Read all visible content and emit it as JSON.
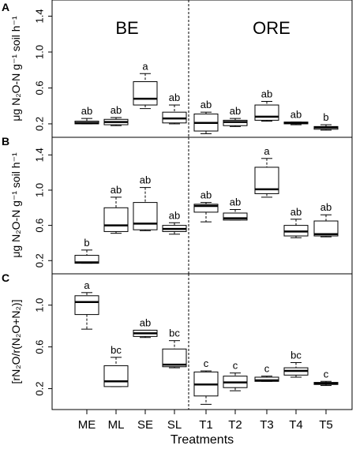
{
  "xlabel": "Treatments",
  "group_labels": [
    "BE",
    "ORE"
  ],
  "categories": [
    "ME",
    "ML",
    "SE",
    "SL",
    "T1",
    "T2",
    "T3",
    "T4",
    "T5"
  ],
  "chart_data": [
    {
      "panel": "A",
      "type": "box",
      "ylabel": "μg N₂O-N g⁻¹ soil h⁻¹",
      "ylim": [
        0.05,
        1.58
      ],
      "yticks": [
        0.2,
        0.6,
        1.0,
        1.4
      ],
      "ytick_labels": [
        "0.2",
        "0.6",
        "1.0",
        "1.4"
      ],
      "boxes": [
        {
          "x": "ME",
          "whisker_low": 0.2,
          "q1": 0.2,
          "median": 0.21,
          "q3": 0.23,
          "whisker_high": 0.26,
          "letter": "ab"
        },
        {
          "x": "ML",
          "whisker_low": 0.18,
          "q1": 0.19,
          "median": 0.22,
          "q3": 0.25,
          "whisker_high": 0.27,
          "letter": "ab"
        },
        {
          "x": "SE",
          "whisker_low": 0.37,
          "q1": 0.41,
          "median": 0.48,
          "q3": 0.67,
          "whisker_high": 0.76,
          "letter": "a"
        },
        {
          "x": "SL",
          "whisker_low": 0.2,
          "q1": 0.21,
          "median": 0.26,
          "q3": 0.33,
          "whisker_high": 0.41,
          "letter": "ab"
        },
        {
          "x": "T1",
          "whisker_low": 0.09,
          "q1": 0.12,
          "median": 0.21,
          "q3": 0.31,
          "whisker_high": 0.33,
          "letter": "ab"
        },
        {
          "x": "T2",
          "whisker_low": 0.17,
          "q1": 0.18,
          "median": 0.22,
          "q3": 0.24,
          "whisker_high": 0.26,
          "letter": "ab"
        },
        {
          "x": "T3",
          "whisker_low": 0.23,
          "q1": 0.24,
          "median": 0.28,
          "q3": 0.41,
          "whisker_high": 0.45,
          "letter": "ab"
        },
        {
          "x": "T4",
          "whisker_low": 0.19,
          "q1": 0.2,
          "median": 0.21,
          "q3": 0.22,
          "whisker_high": 0.22,
          "letter": "ab"
        },
        {
          "x": "T5",
          "whisker_low": 0.13,
          "q1": 0.14,
          "median": 0.16,
          "q3": 0.17,
          "whisker_high": 0.19,
          "letter": "b"
        }
      ]
    },
    {
      "panel": "B",
      "type": "box",
      "ylabel": "μg N₂O-N g⁻¹ soil h⁻¹",
      "ylim": [
        0.05,
        1.6
      ],
      "yticks": [
        0.2,
        0.6,
        1.0,
        1.4
      ],
      "ytick_labels": [
        "0.2",
        "0.6",
        "1.0",
        "1.4"
      ],
      "boxes": [
        {
          "x": "ME",
          "whisker_low": 0.17,
          "q1": 0.17,
          "median": 0.18,
          "q3": 0.26,
          "whisker_high": 0.32,
          "letter": "b"
        },
        {
          "x": "ML",
          "whisker_low": 0.51,
          "q1": 0.53,
          "median": 0.6,
          "q3": 0.8,
          "whisker_high": 0.92,
          "letter": "ab"
        },
        {
          "x": "SE",
          "whisker_low": 0.54,
          "q1": 0.55,
          "median": 0.62,
          "q3": 0.86,
          "whisker_high": 1.03,
          "letter": "ab"
        },
        {
          "x": "SL",
          "whisker_low": 0.5,
          "q1": 0.53,
          "median": 0.56,
          "q3": 0.6,
          "whisker_high": 0.63,
          "letter": "ab"
        },
        {
          "x": "T1",
          "whisker_low": 0.64,
          "q1": 0.75,
          "median": 0.82,
          "q3": 0.84,
          "whisker_high": 0.86,
          "letter": "ab"
        },
        {
          "x": "T2",
          "whisker_low": 0.66,
          "q1": 0.66,
          "median": 0.68,
          "q3": 0.74,
          "whisker_high": 0.78,
          "letter": "ab"
        },
        {
          "x": "T3",
          "whisker_low": 0.92,
          "q1": 0.96,
          "median": 1.01,
          "q3": 1.26,
          "whisker_high": 1.36,
          "letter": "a"
        },
        {
          "x": "T4",
          "whisker_low": 0.46,
          "q1": 0.48,
          "median": 0.53,
          "q3": 0.6,
          "whisker_high": 0.67,
          "letter": "ab"
        },
        {
          "x": "T5",
          "whisker_low": 0.47,
          "q1": 0.48,
          "median": 0.5,
          "q3": 0.65,
          "whisker_high": 0.72,
          "letter": "ab"
        }
      ]
    },
    {
      "panel": "C",
      "type": "box",
      "ylabel": "[rN₂O/r(N₂O+N₂)]",
      "ylim": [
        0.0,
        1.3
      ],
      "yticks": [
        0.2,
        0.6,
        1.0
      ],
      "ytick_labels": [
        "0.2",
        "0.6",
        "1.0"
      ],
      "boxes": [
        {
          "x": "ME",
          "whisker_low": 0.77,
          "q1": 0.91,
          "median": 1.03,
          "q3": 1.09,
          "whisker_high": 1.12,
          "letter": "a"
        },
        {
          "x": "ML",
          "whisker_low": 0.22,
          "q1": 0.22,
          "median": 0.27,
          "q3": 0.42,
          "whisker_high": 0.5,
          "letter": "bc"
        },
        {
          "x": "SE",
          "whisker_low": 0.69,
          "q1": 0.7,
          "median": 0.73,
          "q3": 0.76,
          "whisker_high": 0.76,
          "letter": "ab"
        },
        {
          "x": "SL",
          "whisker_low": 0.4,
          "q1": 0.41,
          "median": 0.43,
          "q3": 0.58,
          "whisker_high": 0.66,
          "letter": "bc"
        },
        {
          "x": "T1",
          "whisker_low": 0.05,
          "q1": 0.13,
          "median": 0.24,
          "q3": 0.36,
          "whisker_high": 0.37,
          "letter": "c"
        },
        {
          "x": "T2",
          "whisker_low": 0.18,
          "q1": 0.21,
          "median": 0.26,
          "q3": 0.32,
          "whisker_high": 0.35,
          "letter": "c"
        },
        {
          "x": "T3",
          "whisker_low": 0.27,
          "q1": 0.27,
          "median": 0.28,
          "q3": 0.31,
          "whisker_high": 0.32,
          "letter": "c"
        },
        {
          "x": "T4",
          "whisker_low": 0.31,
          "q1": 0.33,
          "median": 0.37,
          "q3": 0.4,
          "whisker_high": 0.45,
          "letter": "bc"
        },
        {
          "x": "T5",
          "whisker_low": 0.23,
          "q1": 0.24,
          "median": 0.25,
          "q3": 0.26,
          "whisker_high": 0.27,
          "letter": "c"
        }
      ]
    }
  ]
}
